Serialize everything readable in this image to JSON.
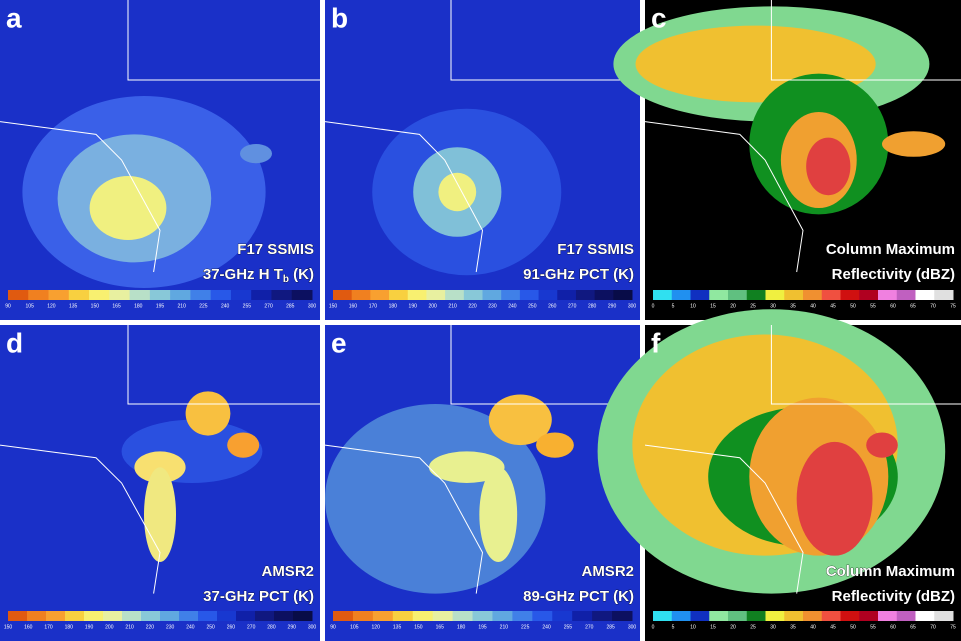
{
  "panels": [
    {
      "letter": "a",
      "caption": [
        "F17 SSMIS",
        "37-GHz H T",
        "b",
        " (K)"
      ],
      "colorbar": {
        "labels": [
          "90",
          "105",
          "120",
          "135",
          "150",
          "165",
          "180",
          "195",
          "210",
          "225",
          "240",
          "255",
          "270",
          "285",
          "300"
        ],
        "colors": [
          "#e05a10",
          "#f08020",
          "#f8a030",
          "#f8d040",
          "#f8f070",
          "#e8f0a0",
          "#b8e0c8",
          "#88c8d8",
          "#60a8e0",
          "#4080e8",
          "#2858e8",
          "#1838d0",
          "#1020a8",
          "#101880",
          "#0c1060"
        ]
      }
    },
    {
      "letter": "b",
      "caption": [
        "F17 SSMIS",
        "91-GHz PCT (K)"
      ],
      "colorbar": {
        "labels": [
          "150",
          "160",
          "170",
          "180",
          "190",
          "200",
          "210",
          "220",
          "230",
          "240",
          "250",
          "260",
          "270",
          "280",
          "290",
          "300"
        ],
        "colors": [
          "#e05a10",
          "#f08020",
          "#f8a030",
          "#f8d040",
          "#f8f070",
          "#e8f0a0",
          "#b8e0c8",
          "#88c8d8",
          "#60a8e0",
          "#4080e8",
          "#2858e8",
          "#1838d0",
          "#1020a8",
          "#101880",
          "#0c1060",
          "#080c48"
        ]
      }
    },
    {
      "letter": "c",
      "caption": [
        "Column Maximum",
        "Reflectivity (dBZ)"
      ],
      "colorbar": {
        "labels": [
          "0",
          "5",
          "10",
          "15",
          "20",
          "25",
          "30",
          "35",
          "40",
          "45",
          "50",
          "55",
          "60",
          "65",
          "70",
          "75"
        ],
        "colors": [
          "#30e0f0",
          "#2090f0",
          "#1030c0",
          "#90e8a0",
          "#60c080",
          "#108020",
          "#f0f040",
          "#f0c030",
          "#f09030",
          "#f05040",
          "#d01010",
          "#b00020",
          "#f080e0",
          "#c060c0",
          "#ffffff",
          "#e0e0e0"
        ]
      }
    },
    {
      "letter": "d",
      "caption": [
        "AMSR2",
        "37-GHz PCT (K)"
      ],
      "colorbar": {
        "labels": [
          "150",
          "160",
          "170",
          "180",
          "190",
          "200",
          "210",
          "220",
          "230",
          "240",
          "250",
          "260",
          "270",
          "280",
          "290",
          "300"
        ],
        "colors": [
          "#e05a10",
          "#f08020",
          "#f8a030",
          "#f8d040",
          "#f8f070",
          "#e8f0a0",
          "#b8e0c8",
          "#88c8d8",
          "#60a8e0",
          "#4080e8",
          "#2858e8",
          "#1838d0",
          "#1020a8",
          "#101880",
          "#0c1060",
          "#080c48"
        ]
      }
    },
    {
      "letter": "e",
      "caption": [
        "AMSR2",
        "89-GHz PCT (K)"
      ],
      "colorbar": {
        "labels": [
          "90",
          "105",
          "120",
          "135",
          "150",
          "165",
          "180",
          "195",
          "210",
          "225",
          "240",
          "255",
          "270",
          "285",
          "300"
        ],
        "colors": [
          "#e05a10",
          "#f08020",
          "#f8a030",
          "#f8d040",
          "#f8f070",
          "#e8f0a0",
          "#b8e0c8",
          "#88c8d8",
          "#60a8e0",
          "#4080e8",
          "#2858e8",
          "#1838d0",
          "#1020a8",
          "#101880",
          "#0c1060"
        ]
      }
    },
    {
      "letter": "f",
      "caption": [
        "Column Maximum",
        "Reflectivity (dBZ)"
      ],
      "colorbar": {
        "labels": [
          "0",
          "5",
          "10",
          "15",
          "20",
          "25",
          "30",
          "35",
          "40",
          "45",
          "50",
          "55",
          "60",
          "65",
          "70",
          "75"
        ],
        "colors": [
          "#30e0f0",
          "#2090f0",
          "#1030c0",
          "#90e8a0",
          "#60c080",
          "#108020",
          "#f0f040",
          "#f0c030",
          "#f09030",
          "#f05040",
          "#d01010",
          "#b00020",
          "#f080e0",
          "#c060c0",
          "#ffffff",
          "#e0e0e0"
        ]
      }
    }
  ]
}
